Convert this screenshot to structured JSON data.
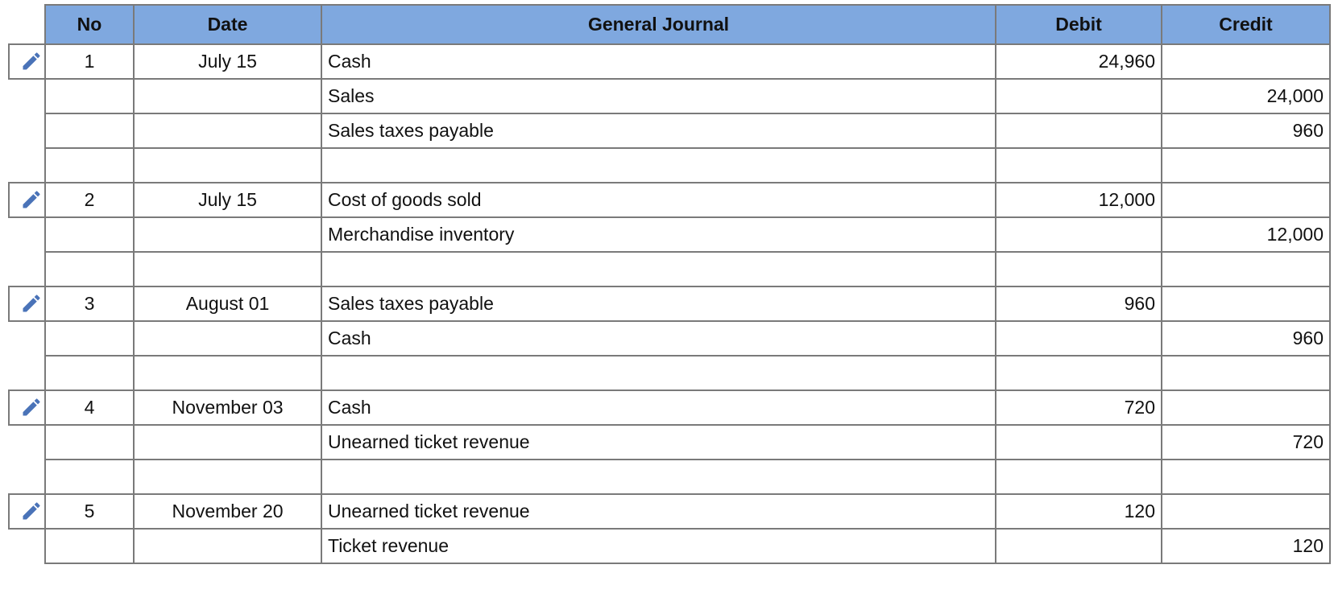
{
  "journal": {
    "headers": {
      "no": "No",
      "date": "Date",
      "general_journal": "General Journal",
      "debit": "Debit",
      "credit": "Credit"
    },
    "entries": [
      {
        "no": "1",
        "date": "July 15",
        "lines": [
          {
            "account": "Cash",
            "debit": "24,960",
            "credit": ""
          },
          {
            "account": "Sales",
            "debit": "",
            "credit": "24,000"
          },
          {
            "account": "Sales taxes payable",
            "debit": "",
            "credit": "960"
          }
        ]
      },
      {
        "no": "2",
        "date": "July 15",
        "lines": [
          {
            "account": "Cost of goods sold",
            "debit": "12,000",
            "credit": ""
          },
          {
            "account": "Merchandise inventory",
            "debit": "",
            "credit": "12,000"
          }
        ]
      },
      {
        "no": "3",
        "date": "August 01",
        "lines": [
          {
            "account": "Sales taxes payable",
            "debit": "960",
            "credit": ""
          },
          {
            "account": "Cash",
            "debit": "",
            "credit": "960"
          }
        ]
      },
      {
        "no": "4",
        "date": "November 03",
        "lines": [
          {
            "account": "Cash",
            "debit": "720",
            "credit": ""
          },
          {
            "account": "Unearned ticket revenue",
            "debit": "",
            "credit": "720"
          }
        ]
      },
      {
        "no": "5",
        "date": "November 20",
        "lines": [
          {
            "account": "Unearned ticket revenue",
            "debit": "120",
            "credit": ""
          },
          {
            "account": "Ticket revenue",
            "debit": "",
            "credit": "120"
          }
        ]
      }
    ]
  },
  "icons": {
    "edit": "pencil-icon"
  },
  "colors": {
    "header_background": "#7fa8df",
    "icon": "#4a73b8",
    "grid_line": "#7a7a7a"
  }
}
